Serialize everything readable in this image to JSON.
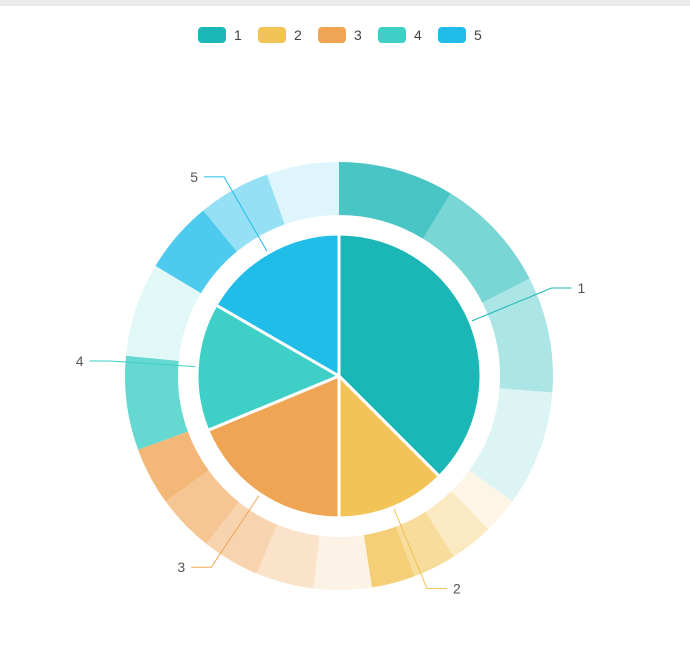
{
  "chart_data": {
    "type": "pie",
    "legend_position": "top-center",
    "inner": {
      "categories": [
        "1",
        "2",
        "3",
        "4",
        "5"
      ],
      "values": [
        36,
        12,
        18,
        14,
        16
      ]
    },
    "outer": {
      "groups": [
        {
          "name": "1",
          "values": [
            8,
            8,
            8,
            8
          ]
        },
        {
          "name": "2",
          "values": [
            2.5,
            3,
            3,
            3
          ]
        },
        {
          "name": "3",
          "values": [
            4,
            4,
            4,
            4,
            4
          ]
        },
        {
          "name": "4",
          "values": [
            6.5,
            6.5
          ]
        },
        {
          "name": "5",
          "values": [
            5,
            5,
            5
          ]
        }
      ]
    },
    "colors": [
      "#1bb7b7",
      "#f2c356",
      "#f0a555",
      "#3ecfc6",
      "#20bde9"
    ]
  },
  "legend": [
    {
      "label": "1",
      "color": "#1bb7b7"
    },
    {
      "label": "2",
      "color": "#f2c356"
    },
    {
      "label": "3",
      "color": "#f0a555"
    },
    {
      "label": "4",
      "color": "#3ecfc6"
    },
    {
      "label": "5",
      "color": "#20bde9"
    }
  ],
  "callouts": [
    {
      "label": "1"
    },
    {
      "label": "2"
    },
    {
      "label": "3"
    },
    {
      "label": "4"
    },
    {
      "label": "5"
    }
  ]
}
